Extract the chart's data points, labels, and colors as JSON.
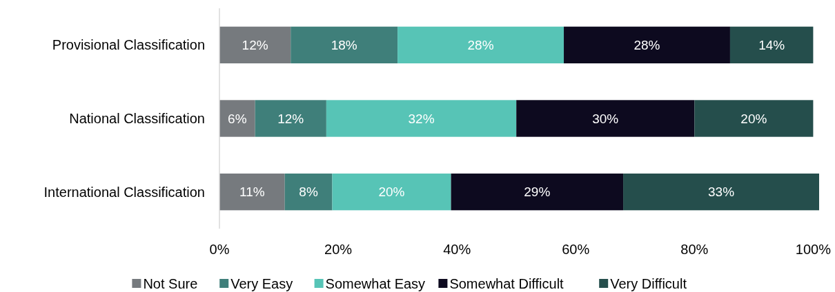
{
  "chart_data": {
    "type": "bar",
    "orientation": "horizontal",
    "stacked": true,
    "categories": [
      "Provisional Classification",
      "National Classification",
      "International Classification"
    ],
    "series": [
      {
        "name": "Not Sure",
        "color": "#767a7e",
        "values": [
          12,
          6,
          11
        ],
        "value_labels": [
          "12%",
          "6%",
          "11%"
        ]
      },
      {
        "name": "Very Easy",
        "color": "#3f7f7a",
        "values": [
          18,
          12,
          8
        ],
        "value_labels": [
          "18%",
          "12%",
          "8%"
        ]
      },
      {
        "name": "Somewhat Easy",
        "color": "#57c4b6",
        "values": [
          28,
          32,
          20
        ],
        "value_labels": [
          "28%",
          "32%",
          "20%"
        ]
      },
      {
        "name": "Somewhat Difficult",
        "color": "#0d0a1f",
        "values": [
          28,
          30,
          29
        ],
        "value_labels": [
          "28%",
          "30%",
          "29%"
        ]
      },
      {
        "name": "Very Difficult",
        "color": "#254e4c",
        "values": [
          14,
          20,
          33
        ],
        "value_labels": [
          "14%",
          "20%",
          "33%"
        ]
      }
    ],
    "xlim": [
      0,
      101
    ],
    "xticks": [
      {
        "value": 0,
        "label": "0%"
      },
      {
        "value": 20,
        "label": "20%"
      },
      {
        "value": 40,
        "label": "40%"
      },
      {
        "value": 60,
        "label": "60%"
      },
      {
        "value": 80,
        "label": "80%"
      },
      {
        "value": 100,
        "label": "100%"
      }
    ],
    "legend": "bottom"
  }
}
